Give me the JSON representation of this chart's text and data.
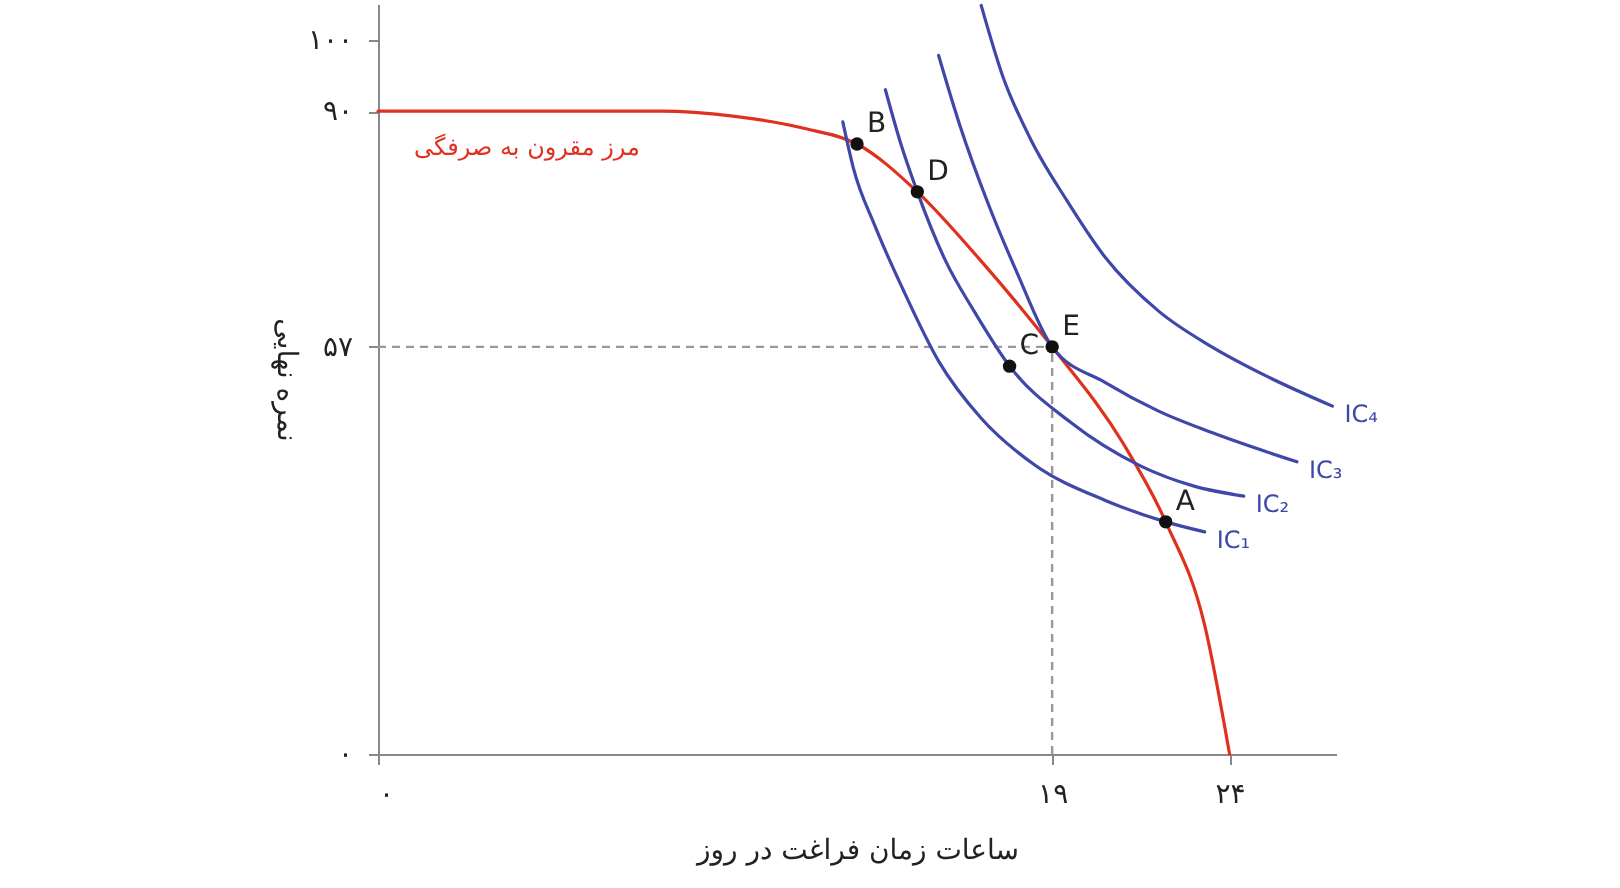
{
  "chart_data": {
    "type": "line",
    "xlabel": "ساعات زمان فراغت در روز",
    "ylabel": "نمره نهایی",
    "xlim": [
      0,
      27
    ],
    "ylim": [
      0,
      105
    ],
    "xticks": [
      {
        "value": 0,
        "label": "۰"
      },
      {
        "value": 19,
        "label": "۱۹"
      },
      {
        "value": 24,
        "label": "۲۴"
      }
    ],
    "yticks": [
      {
        "value": 0,
        "label": "۰"
      },
      {
        "value": 57,
        "label": "۵۷"
      },
      {
        "value": 90,
        "label": "۹۰"
      },
      {
        "value": 100,
        "label": "۱۰۰"
      }
    ],
    "grid": false,
    "line_style": "solid",
    "series": [
      {
        "name": "مرز مقرون به صرفگی",
        "color": "#e0301e",
        "x": [
          0,
          8,
          10,
          12,
          13.5,
          15.2,
          17,
          19,
          21,
          22.2,
          23.3,
          24
        ],
        "values": [
          90,
          90,
          89.3,
          87.6,
          85.4,
          78.7,
          69,
          57,
          43.5,
          32.5,
          18,
          0
        ]
      },
      {
        "name": "IC₁",
        "color": "#3f48a8",
        "x": [
          13.1,
          13.4,
          14,
          14.8,
          15.8,
          17,
          18.5,
          20.5,
          22.2,
          23.3
        ],
        "values": [
          88.5,
          82,
          74,
          65,
          55,
          47,
          40.5,
          35.5,
          32.5,
          31.1
        ]
      },
      {
        "name": "IC₂",
        "color": "#3f48a8",
        "x": [
          14.3,
          14.7,
          15.2,
          16,
          16.8,
          17.8,
          19.5,
          21.5,
          23,
          24.4
        ],
        "values": [
          93,
          86,
          78.7,
          69,
          62,
          54.3,
          46.5,
          40.3,
          37.5,
          36.1
        ]
      },
      {
        "name": "IC₃",
        "color": "#3f48a8",
        "x": [
          15.8,
          16.4,
          17.2,
          18,
          19,
          20.5,
          22,
          23.5,
          25.9
        ],
        "values": [
          97.8,
          88,
          77,
          67.5,
          57,
          52,
          48,
          45,
          40.9
        ]
      },
      {
        "name": "IC₄",
        "color": "#3f48a8",
        "x": [
          17,
          17.6,
          18.4,
          19.4,
          20.5,
          22,
          23.5,
          25,
          26.9
        ],
        "values": [
          104.8,
          95,
          86,
          77.6,
          69.5,
          62,
          57,
          53,
          48.7
        ]
      },
      {
        "type": "scatter",
        "marker": "circle",
        "color": "#111111",
        "x": [
          13.5,
          15.2,
          17.8,
          19,
          22.2
        ],
        "values": [
          85.4,
          78.7,
          54.3,
          57,
          32.5
        ]
      }
    ],
    "ref_lines": [
      {
        "axis": "x",
        "value": 19,
        "color": "#999999",
        "line_style": "dashed"
      },
      {
        "axis": "y",
        "value": 57,
        "color": "#999999",
        "line_style": "dashed"
      }
    ],
    "annotations": [
      {
        "text": "A",
        "x": 22.2,
        "y": 32.5
      },
      {
        "text": "B",
        "x": 13.5,
        "y": 85.4
      },
      {
        "text": "C",
        "x": 17.8,
        "y": 54.3
      },
      {
        "text": "D",
        "x": 15.2,
        "y": 78.7
      },
      {
        "text": "E",
        "x": 19,
        "y": 57
      }
    ]
  }
}
